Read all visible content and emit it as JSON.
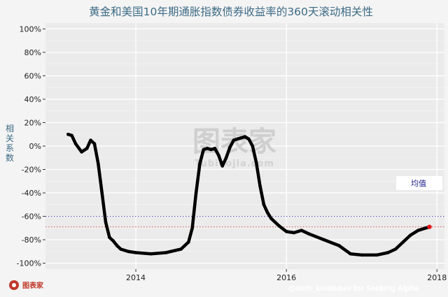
{
  "chart_data": {
    "type": "line",
    "title": "黄金和美国10年期通胀指数债券收益率的360天滚动相关性",
    "ylabel": "相关系数",
    "xlabel": "",
    "xlim": [
      2012.8,
      2018.1
    ],
    "ylim": [
      -105,
      105
    ],
    "x_ticks": [
      2014,
      2016,
      2018
    ],
    "x_tick_labels": [
      "2014",
      "2016",
      "2018"
    ],
    "y_ticks": [
      100,
      80,
      60,
      40,
      20,
      0,
      -20,
      -40,
      -60,
      -80,
      -100
    ],
    "y_tick_labels": [
      "100%",
      "80%",
      "60%",
      "40%",
      "20%",
      "0%",
      "-20%",
      "-40%",
      "-60%",
      "-80%",
      "-100%"
    ],
    "grid": true,
    "series": [
      {
        "color": "#000000",
        "end_color": "#e8141b",
        "x": [
          2013.1,
          2013.15,
          2013.2,
          2013.28,
          2013.35,
          2013.4,
          2013.45,
          2013.5,
          2013.55,
          2013.6,
          2013.65,
          2013.7,
          2013.75,
          2013.8,
          2013.9,
          2014.0,
          2014.2,
          2014.4,
          2014.6,
          2014.7,
          2014.75,
          2014.8,
          2014.85,
          2014.9,
          2014.95,
          2015.0,
          2015.05,
          2015.1,
          2015.15,
          2015.2,
          2015.25,
          2015.3,
          2015.35,
          2015.4,
          2015.45,
          2015.5,
          2015.55,
          2015.6,
          2015.65,
          2015.7,
          2015.75,
          2015.8,
          2015.9,
          2016.0,
          2016.1,
          2016.2,
          2016.3,
          2016.5,
          2016.7,
          2016.85,
          2017.0,
          2017.2,
          2017.35,
          2017.45,
          2017.55,
          2017.65,
          2017.75,
          2017.85,
          2017.9
        ],
        "values": [
          10,
          9,
          2,
          -5,
          -2,
          5,
          2,
          -15,
          -40,
          -65,
          -78,
          -81,
          -85,
          -88,
          -90,
          -91,
          -92,
          -91,
          -88,
          -82,
          -70,
          -40,
          -15,
          -3,
          -2,
          -3,
          -2,
          -8,
          -17,
          -10,
          -1,
          5,
          6,
          7,
          8,
          6,
          0,
          -14,
          -34,
          -50,
          -57,
          -62,
          -68,
          -73,
          -74,
          -72,
          -75,
          -80,
          -85,
          -92,
          -93,
          -93,
          -91,
          -88,
          -82,
          -76,
          -72,
          -70,
          -69
        ],
        "highlight_last": true
      }
    ],
    "reference_lines": [
      {
        "label": "均值",
        "value": -60,
        "color": "#3030b0",
        "style": "dotted"
      },
      {
        "value": -69,
        "color": "#e05050",
        "style": "dotted"
      }
    ],
    "annotations": {
      "mean_label": "均值",
      "credit": "@oleh_kombalev for Seeking Alpha",
      "watermark_cn": "图表家",
      "watermark_en": "Tubiaojia.com",
      "logo_text": "图表家"
    }
  }
}
